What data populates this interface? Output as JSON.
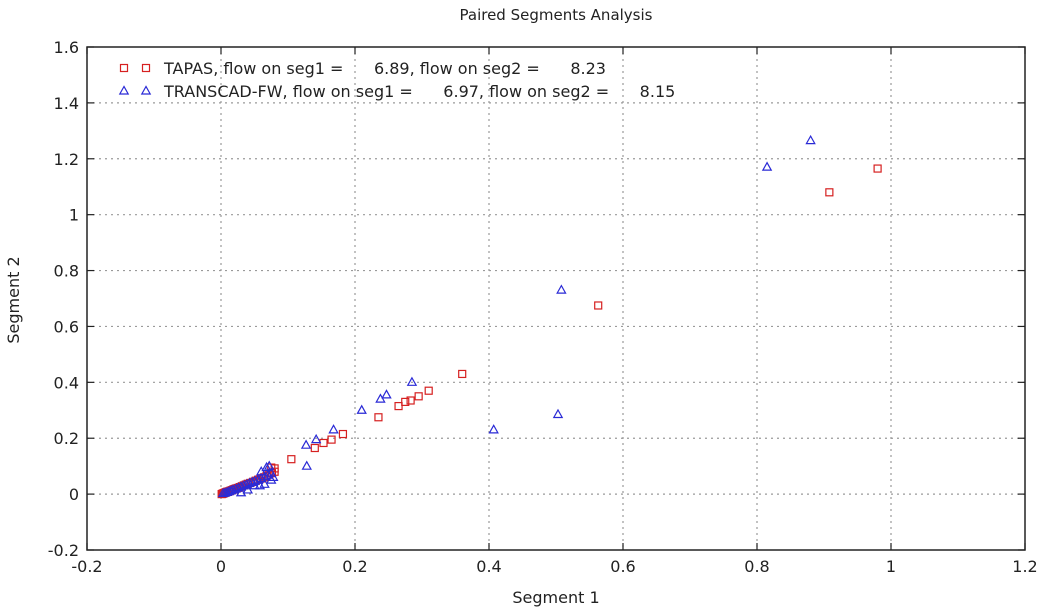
{
  "chart_data": {
    "type": "scatter",
    "title": "Paired Segments Analysis",
    "xlabel": "Segment 1",
    "ylabel": "Segment 2",
    "xlim": [
      -0.2,
      1.2
    ],
    "ylim": [
      -0.2,
      1.6
    ],
    "x_ticks": [
      -0.2,
      0,
      0.2,
      0.4,
      0.6,
      0.8,
      1,
      1.2
    ],
    "y_ticks": [
      -0.2,
      0,
      0.2,
      0.4,
      0.6,
      0.8,
      1,
      1.2,
      1.4,
      1.6
    ],
    "x_tick_labels": [
      "-0.2",
      "0",
      "0.2",
      "0.4",
      "0.6",
      "0.8",
      "1",
      "1.2"
    ],
    "y_tick_labels": [
      "-0.2",
      "0",
      "0.2",
      "0.4",
      "0.6",
      "0.8",
      "1",
      "1.2",
      "1.4",
      "1.6"
    ],
    "grid": true,
    "legend_position": "top-left",
    "series": [
      {
        "name": "TAPAS, flow on seg1 =      6.89, flow on seg2 =      8.23",
        "marker": "square",
        "color": "#d62020",
        "points": [
          [
            0.001,
            0.0
          ],
          [
            0.002,
            0.001
          ],
          [
            0.003,
            0.002
          ],
          [
            0.004,
            0.003
          ],
          [
            0.005,
            0.004
          ],
          [
            0.006,
            0.005
          ],
          [
            0.007,
            0.006
          ],
          [
            0.008,
            0.007
          ],
          [
            0.009,
            0.008
          ],
          [
            0.01,
            0.009
          ],
          [
            0.012,
            0.01
          ],
          [
            0.014,
            0.012
          ],
          [
            0.016,
            0.014
          ],
          [
            0.018,
            0.016
          ],
          [
            0.02,
            0.018
          ],
          [
            0.022,
            0.02
          ],
          [
            0.025,
            0.022
          ],
          [
            0.028,
            0.025
          ],
          [
            0.031,
            0.028
          ],
          [
            0.034,
            0.031
          ],
          [
            0.037,
            0.034
          ],
          [
            0.04,
            0.037
          ],
          [
            0.044,
            0.04
          ],
          [
            0.048,
            0.044
          ],
          [
            0.052,
            0.048
          ],
          [
            0.056,
            0.052
          ],
          [
            0.06,
            0.056
          ],
          [
            0.064,
            0.06
          ],
          [
            0.068,
            0.065
          ],
          [
            0.072,
            0.07
          ],
          [
            0.076,
            0.075
          ],
          [
            0.08,
            0.08
          ],
          [
            0.075,
            0.095
          ],
          [
            0.08,
            0.092
          ],
          [
            0.105,
            0.125
          ],
          [
            0.14,
            0.165
          ],
          [
            0.153,
            0.183
          ],
          [
            0.165,
            0.195
          ],
          [
            0.182,
            0.215
          ],
          [
            0.235,
            0.275
          ],
          [
            0.265,
            0.315
          ],
          [
            0.275,
            0.33
          ],
          [
            0.283,
            0.335
          ],
          [
            0.295,
            0.35
          ],
          [
            0.31,
            0.37
          ],
          [
            0.36,
            0.43
          ],
          [
            0.563,
            0.675
          ],
          [
            0.908,
            1.08
          ],
          [
            0.98,
            1.165
          ]
        ]
      },
      {
        "name": "TRANSCAD-FW, flow on seg1 =      6.97, flow on seg2 =      8.15",
        "marker": "triangle",
        "color": "#2a2ad6",
        "points": [
          [
            0.003,
            0.002
          ],
          [
            0.006,
            0.004
          ],
          [
            0.009,
            0.006
          ],
          [
            0.012,
            0.009
          ],
          [
            0.015,
            0.012
          ],
          [
            0.018,
            0.015
          ],
          [
            0.022,
            0.018
          ],
          [
            0.026,
            0.022
          ],
          [
            0.03,
            0.026
          ],
          [
            0.034,
            0.03
          ],
          [
            0.038,
            0.034
          ],
          [
            0.042,
            0.038
          ],
          [
            0.046,
            0.042
          ],
          [
            0.05,
            0.046
          ],
          [
            0.055,
            0.05
          ],
          [
            0.06,
            0.056
          ],
          [
            0.065,
            0.062
          ],
          [
            0.07,
            0.068
          ],
          [
            0.075,
            0.075
          ],
          [
            0.06,
            0.08
          ],
          [
            0.068,
            0.095
          ],
          [
            0.072,
            0.1
          ],
          [
            0.03,
            0.005
          ],
          [
            0.04,
            0.015
          ],
          [
            0.05,
            0.03
          ],
          [
            0.058,
            0.03
          ],
          [
            0.065,
            0.035
          ],
          [
            0.075,
            0.05
          ],
          [
            0.078,
            0.06
          ],
          [
            0.128,
            0.1
          ],
          [
            0.127,
            0.175
          ],
          [
            0.142,
            0.195
          ],
          [
            0.168,
            0.23
          ],
          [
            0.21,
            0.3
          ],
          [
            0.238,
            0.34
          ],
          [
            0.247,
            0.355
          ],
          [
            0.285,
            0.4
          ],
          [
            0.407,
            0.23
          ],
          [
            0.503,
            0.285
          ],
          [
            0.508,
            0.73
          ],
          [
            0.815,
            1.17
          ],
          [
            0.88,
            1.265
          ]
        ]
      }
    ]
  }
}
